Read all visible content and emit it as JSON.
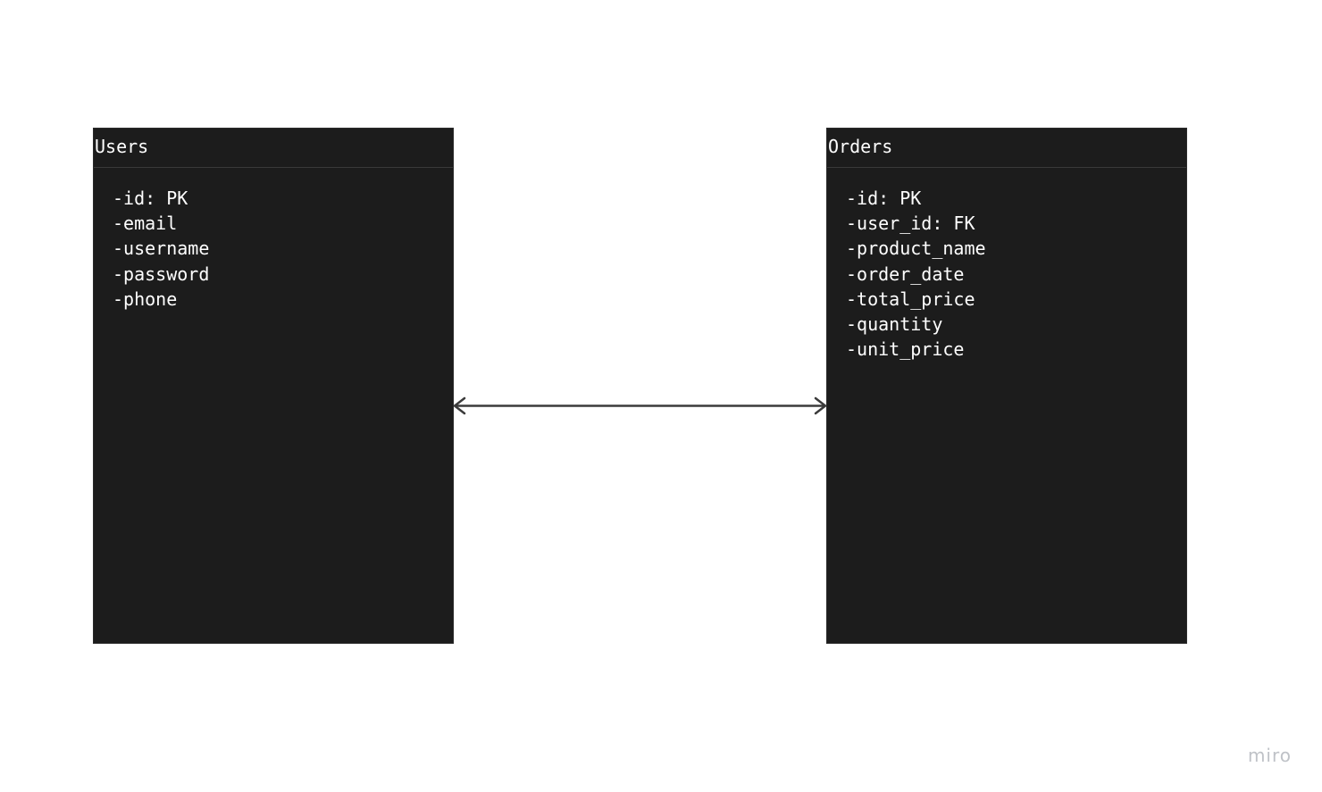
{
  "diagram": {
    "entities": [
      {
        "title": "Users",
        "fields": [
          "-id: PK",
          "-email",
          "-username",
          "-password",
          "-phone"
        ]
      },
      {
        "title": "Orders",
        "fields": [
          "-id: PK",
          "-user_id: FK",
          "-product_name",
          "-order_date",
          "-total_price",
          "-quantity",
          "-unit_price"
        ]
      }
    ],
    "relationship": {
      "from": "Users",
      "to": "Orders",
      "arrows": "both-ends",
      "line_color": "#3b3b3b"
    },
    "entity_fill_color": "#1c1c1c",
    "text_color": "#ffffff"
  },
  "watermark": {
    "text": "miro"
  }
}
